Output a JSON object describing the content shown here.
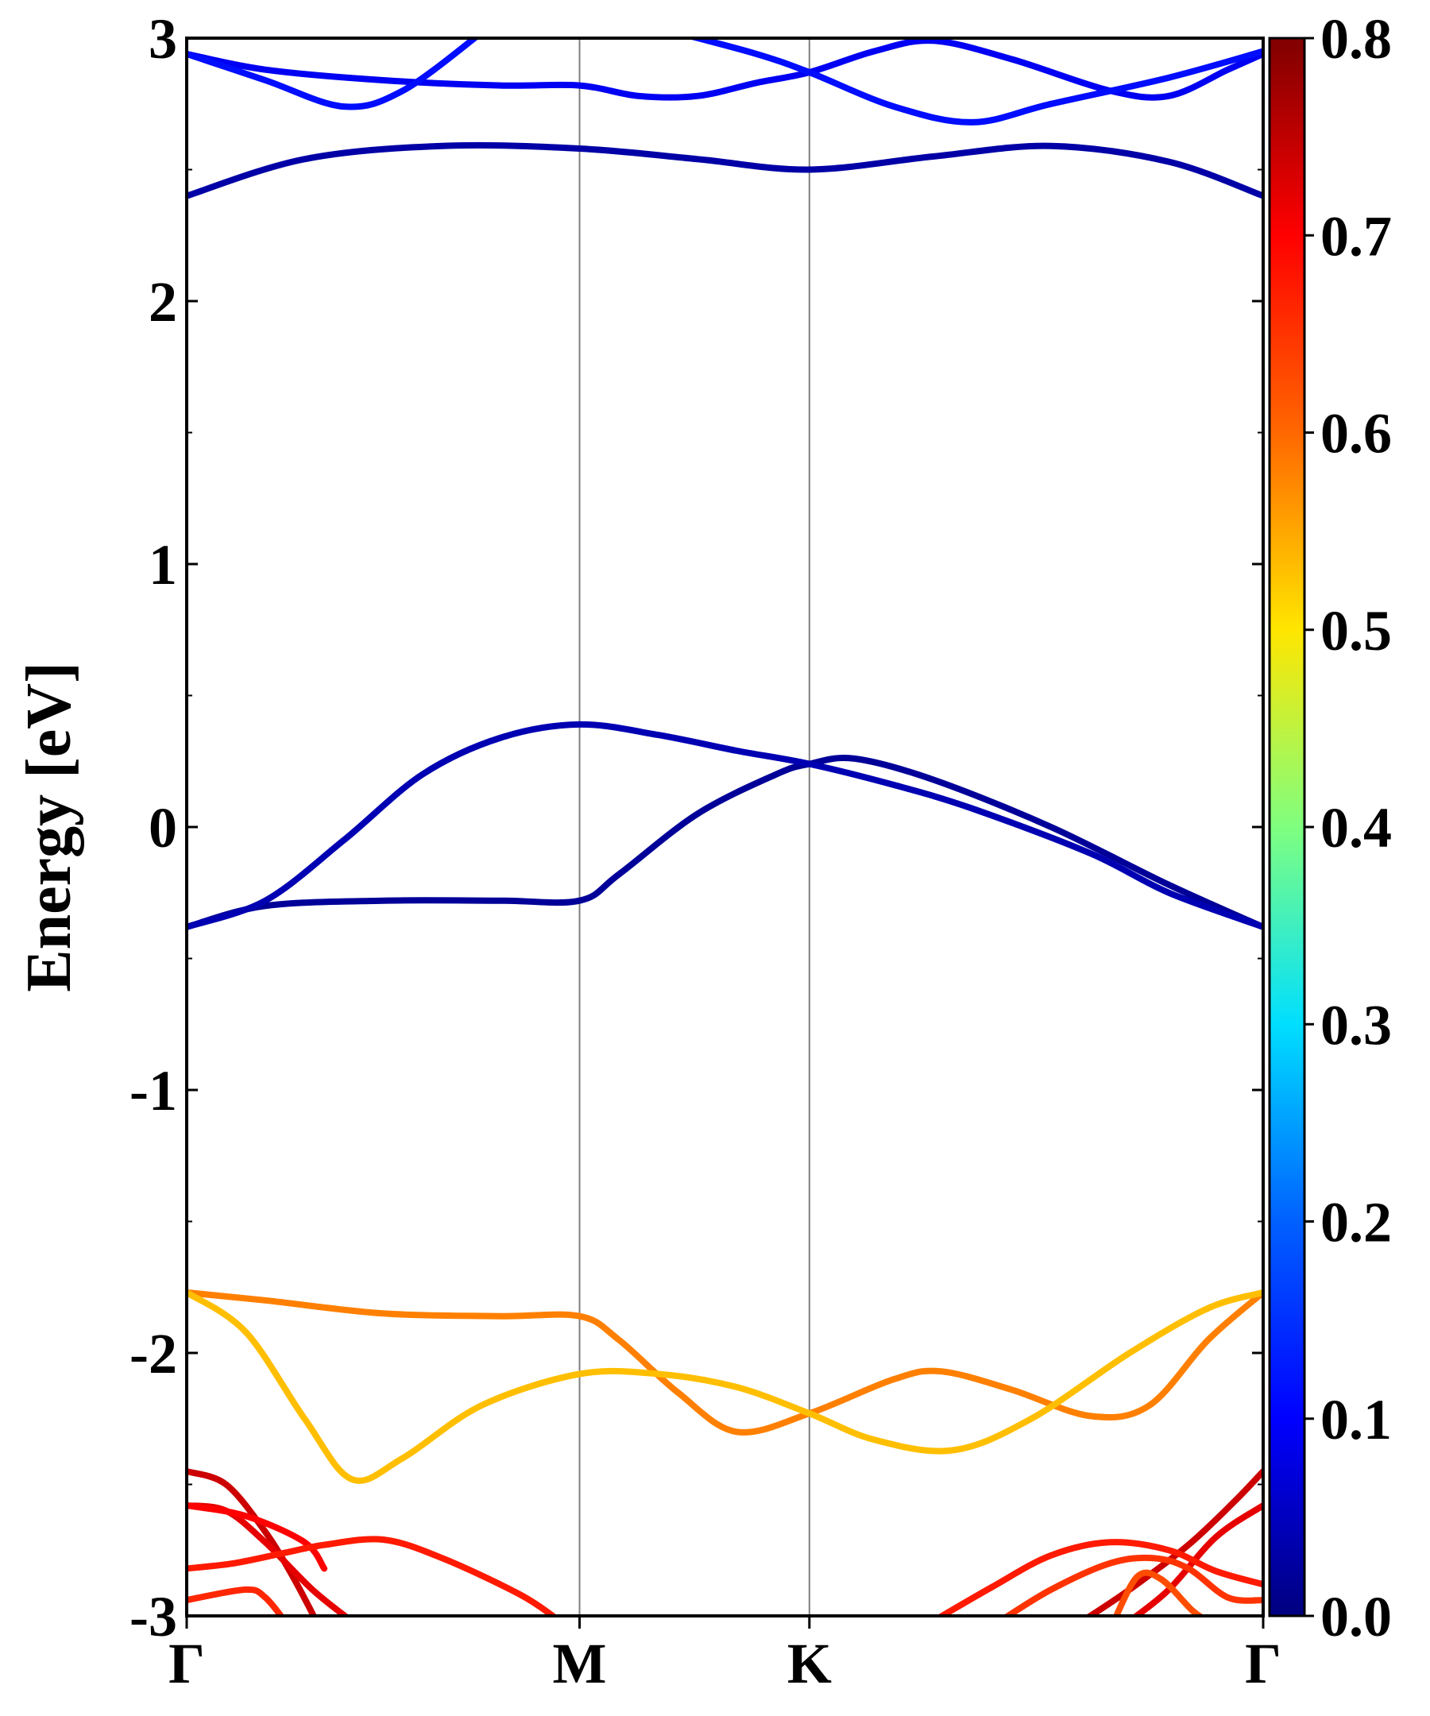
{
  "chart_data": {
    "type": "line",
    "title": "",
    "ylabel": "Energy [eV]",
    "xlabel": "",
    "ylim": [
      -3,
      3
    ],
    "y_ticks": [
      {
        "value": -3,
        "label": "-3"
      },
      {
        "value": -2,
        "label": "-2"
      },
      {
        "value": -1,
        "label": "-1"
      },
      {
        "value": 0,
        "label": "0"
      },
      {
        "value": 1,
        "label": "1"
      },
      {
        "value": 2,
        "label": "2"
      },
      {
        "value": 3,
        "label": "3"
      }
    ],
    "y_minor_ticks": [
      -2.5,
      -1.5,
      -0.5,
      0.5,
      1.5,
      2.5
    ],
    "k_path": [
      {
        "label": "Γ",
        "x": 0.0
      },
      {
        "label": "M",
        "x": 1.0
      },
      {
        "label": "K",
        "x": 1.585
      },
      {
        "label": "Γ",
        "x": 2.74
      }
    ],
    "high_symmetry_lines": true,
    "colorbar": {
      "range": [
        0.0,
        0.8
      ],
      "ticks": [
        "0.0",
        "0.1",
        "0.2",
        "0.3",
        "0.4",
        "0.5",
        "0.6",
        "0.7",
        "0.8"
      ],
      "colormap": "jet"
    },
    "series": [
      {
        "weight": 0.02,
        "points": [
          [
            0.0,
            -0.38
          ],
          [
            0.2,
            -0.3
          ],
          [
            0.5,
            -0.28
          ],
          [
            0.8,
            -0.28
          ],
          [
            1.0,
            -0.28
          ],
          [
            1.1,
            -0.18
          ],
          [
            1.3,
            0.05
          ],
          [
            1.5,
            0.2
          ],
          [
            1.585,
            0.24
          ],
          [
            1.7,
            0.26
          ],
          [
            1.9,
            0.18
          ],
          [
            2.2,
            0.0
          ],
          [
            2.5,
            -0.22
          ],
          [
            2.74,
            -0.38
          ]
        ]
      },
      {
        "weight": 0.04,
        "points": [
          [
            0.0,
            -0.38
          ],
          [
            0.2,
            -0.28
          ],
          [
            0.4,
            -0.05
          ],
          [
            0.6,
            0.2
          ],
          [
            0.8,
            0.34
          ],
          [
            1.0,
            0.39
          ],
          [
            1.2,
            0.35
          ],
          [
            1.4,
            0.29
          ],
          [
            1.585,
            0.24
          ],
          [
            1.8,
            0.16
          ],
          [
            2.0,
            0.07
          ],
          [
            2.3,
            -0.1
          ],
          [
            2.5,
            -0.25
          ],
          [
            2.74,
            -0.38
          ]
        ]
      },
      {
        "weight": 0.03,
        "points": [
          [
            0.0,
            2.4
          ],
          [
            0.3,
            2.54
          ],
          [
            0.65,
            2.59
          ],
          [
            1.0,
            2.58
          ],
          [
            1.3,
            2.54
          ],
          [
            1.585,
            2.5
          ],
          [
            1.9,
            2.55
          ],
          [
            2.2,
            2.59
          ],
          [
            2.5,
            2.53
          ],
          [
            2.74,
            2.4
          ]
        ]
      },
      {
        "weight": 0.09,
        "points": [
          [
            0.0,
            2.94
          ],
          [
            0.2,
            2.88
          ],
          [
            0.5,
            2.84
          ],
          [
            0.8,
            2.82
          ],
          [
            1.0,
            2.82
          ],
          [
            1.15,
            2.78
          ],
          [
            1.3,
            2.78
          ],
          [
            1.45,
            2.83
          ],
          [
            1.585,
            2.87
          ],
          [
            1.75,
            2.95
          ],
          [
            1.9,
            2.99
          ],
          [
            2.1,
            2.92
          ],
          [
            2.35,
            2.8
          ],
          [
            2.5,
            2.78
          ],
          [
            2.65,
            2.88
          ],
          [
            2.74,
            2.94
          ]
        ]
      },
      {
        "weight": 0.11,
        "points": [
          [
            0.0,
            2.94
          ],
          [
            0.2,
            2.84
          ],
          [
            0.4,
            2.74
          ],
          [
            0.55,
            2.8
          ],
          [
            0.75,
            3.02
          ]
        ]
      },
      {
        "weight": 0.11,
        "points": [
          [
            1.25,
            3.02
          ],
          [
            1.45,
            2.94
          ],
          [
            1.585,
            2.87
          ],
          [
            1.8,
            2.74
          ],
          [
            2.0,
            2.68
          ],
          [
            2.2,
            2.75
          ],
          [
            2.5,
            2.85
          ],
          [
            2.74,
            2.95
          ]
        ]
      },
      {
        "weight": 0.6,
        "points": [
          [
            0.0,
            -1.77
          ],
          [
            0.2,
            -1.8
          ],
          [
            0.5,
            -1.85
          ],
          [
            0.8,
            -1.86
          ],
          [
            1.0,
            -1.86
          ],
          [
            1.1,
            -1.95
          ],
          [
            1.25,
            -2.15
          ],
          [
            1.4,
            -2.3
          ],
          [
            1.585,
            -2.23
          ],
          [
            1.8,
            -2.1
          ],
          [
            1.92,
            -2.07
          ],
          [
            2.1,
            -2.14
          ],
          [
            2.3,
            -2.24
          ],
          [
            2.45,
            -2.2
          ],
          [
            2.6,
            -1.95
          ],
          [
            2.74,
            -1.77
          ]
        ]
      },
      {
        "weight": 0.55,
        "points": [
          [
            0.0,
            -1.77
          ],
          [
            0.15,
            -1.92
          ],
          [
            0.3,
            -2.25
          ],
          [
            0.42,
            -2.48
          ],
          [
            0.55,
            -2.4
          ],
          [
            0.75,
            -2.2
          ],
          [
            1.0,
            -2.08
          ],
          [
            1.2,
            -2.08
          ],
          [
            1.4,
            -2.13
          ],
          [
            1.585,
            -2.23
          ],
          [
            1.75,
            -2.33
          ],
          [
            1.95,
            -2.37
          ],
          [
            2.15,
            -2.25
          ],
          [
            2.4,
            -2.0
          ],
          [
            2.6,
            -1.83
          ],
          [
            2.74,
            -1.77
          ]
        ]
      },
      {
        "weight": 0.74,
        "points": [
          [
            0.0,
            -2.45
          ],
          [
            0.1,
            -2.5
          ],
          [
            0.2,
            -2.68
          ],
          [
            0.27,
            -2.85
          ],
          [
            0.33,
            -3.02
          ]
        ]
      },
      {
        "weight": 0.72,
        "points": [
          [
            0.0,
            -2.58
          ],
          [
            0.1,
            -2.6
          ],
          [
            0.2,
            -2.72
          ],
          [
            0.32,
            -2.9
          ],
          [
            0.42,
            -3.02
          ]
        ]
      },
      {
        "weight": 0.7,
        "points": [
          [
            0.0,
            -2.58
          ],
          [
            0.15,
            -2.62
          ],
          [
            0.3,
            -2.72
          ],
          [
            0.35,
            -2.82
          ]
        ]
      },
      {
        "weight": 0.68,
        "points": [
          [
            0.0,
            -2.82
          ],
          [
            0.12,
            -2.8
          ],
          [
            0.25,
            -2.76
          ],
          [
            0.35,
            -2.73
          ],
          [
            0.5,
            -2.71
          ],
          [
            0.65,
            -2.78
          ],
          [
            0.85,
            -2.92
          ],
          [
            0.95,
            -3.02
          ]
        ]
      },
      {
        "weight": 0.67,
        "points": [
          [
            0.0,
            -2.94
          ],
          [
            0.15,
            -2.9
          ],
          [
            0.2,
            -2.93
          ],
          [
            0.25,
            -3.02
          ]
        ]
      },
      {
        "weight": 0.74,
        "points": [
          [
            2.28,
            -3.02
          ],
          [
            2.4,
            -2.9
          ],
          [
            2.55,
            -2.73
          ],
          [
            2.67,
            -2.56
          ],
          [
            2.74,
            -2.45
          ]
        ]
      },
      {
        "weight": 0.72,
        "points": [
          [
            2.4,
            -3.02
          ],
          [
            2.5,
            -2.9
          ],
          [
            2.62,
            -2.7
          ],
          [
            2.74,
            -2.58
          ]
        ]
      },
      {
        "weight": 0.68,
        "points": [
          [
            1.9,
            -3.02
          ],
          [
            2.05,
            -2.89
          ],
          [
            2.2,
            -2.77
          ],
          [
            2.35,
            -2.72
          ],
          [
            2.5,
            -2.75
          ],
          [
            2.62,
            -2.83
          ],
          [
            2.74,
            -2.88
          ]
        ]
      },
      {
        "weight": 0.66,
        "points": [
          [
            2.07,
            -3.02
          ],
          [
            2.2,
            -2.9
          ],
          [
            2.35,
            -2.8
          ],
          [
            2.46,
            -2.78
          ],
          [
            2.55,
            -2.82
          ],
          [
            2.65,
            -2.93
          ],
          [
            2.74,
            -2.94
          ]
        ]
      },
      {
        "weight": 0.64,
        "points": [
          [
            2.36,
            -3.02
          ],
          [
            2.42,
            -2.85
          ],
          [
            2.48,
            -2.86
          ],
          [
            2.56,
            -2.98
          ],
          [
            2.6,
            -3.02
          ]
        ]
      }
    ]
  }
}
